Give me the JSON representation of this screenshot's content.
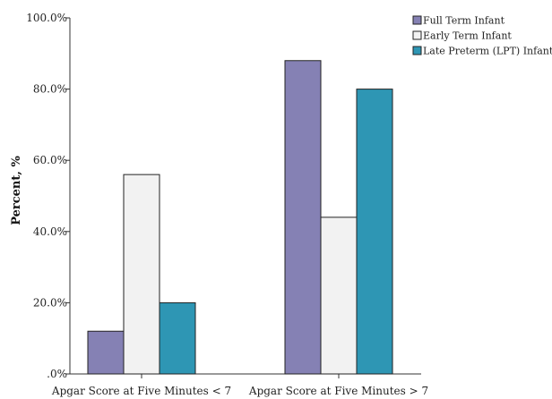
{
  "chart_data": {
    "type": "bar",
    "title": "",
    "xlabel": "",
    "ylabel": "Percent, %",
    "ylim": [
      0,
      100
    ],
    "yticks": [
      ".0%",
      "20.0%",
      "40.0%",
      "60.0%",
      "80.0%",
      "100.0%"
    ],
    "categories": [
      "Apgar Score at Five Minutes < 7",
      "Apgar Score at Five Minutes > 7"
    ],
    "series": [
      {
        "name": "Full Term Infant",
        "color": "#8581b4",
        "values": [
          12,
          88
        ]
      },
      {
        "name": "Early Term Infant",
        "color": "#f2f2f2",
        "values": [
          56,
          44
        ]
      },
      {
        "name": "Late Preterm (LPT) Infant",
        "color": "#2e96b4",
        "values": [
          20,
          80
        ]
      }
    ],
    "legend": "top-right",
    "grid": false
  }
}
